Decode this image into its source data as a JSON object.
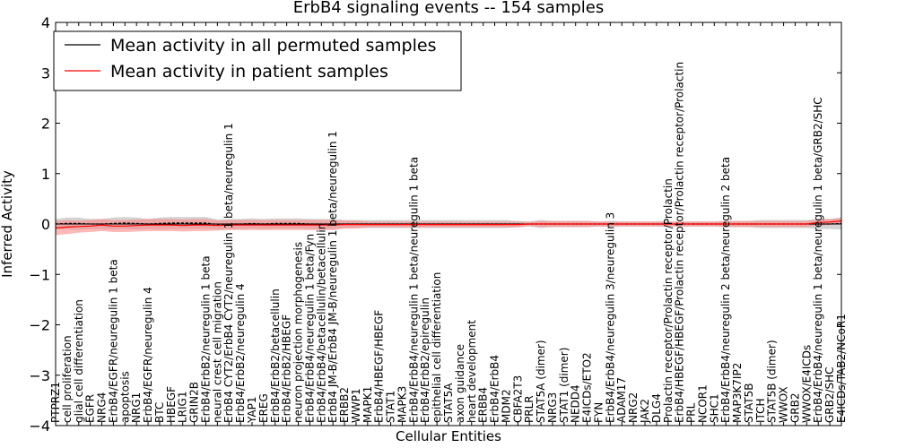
{
  "chart_data": {
    "type": "line",
    "title": "ErbB4 signaling events -- 154 samples",
    "xlabel": "Cellular Entities",
    "ylabel": "Inferred Activity",
    "ylim": [
      -4,
      4
    ],
    "yticks": [
      4,
      3,
      2,
      1,
      0,
      -1,
      -2,
      -3,
      -4
    ],
    "yticklabels": [
      "4",
      "3",
      "2",
      "1",
      "0",
      "−1",
      "−2",
      "−3",
      "−4"
    ],
    "legend": {
      "position": "top-left",
      "entries": [
        {
          "label": "Mean activity in all permuted samples",
          "color": "#000000"
        },
        {
          "label": "Mean activity in patient samples",
          "color": "#ff0000"
        }
      ]
    },
    "colors": {
      "permuted": "#000000",
      "patient": "#ff0000",
      "permuted_band": "#b0b0b0",
      "patient_band": "#ff8080"
    },
    "categories": [
      "PTPRZ1",
      "cell proliferation",
      "glial cell differentiation",
      "EGFR",
      "NRG4",
      "ErbB4/EGFR/neuregulin 1 beta",
      "apoptosis",
      "NRG1",
      "ErbB4/EGFR/neuregulin 4",
      "BTC",
      "HBEGF",
      "LRIG1",
      "GRIN2B",
      "ErbB4/ErbB2/neuregulin 1 beta",
      "neural crest cell migration",
      "ErbB4 CYT2/ErbB4 CYT2/neuregulin 1 beta/neuregulin 1",
      "ErbB4/ErbB2/neuregulin 4",
      "YAP1",
      "EREG",
      "ErbB4/ErbB2/betacellulin",
      "ErbB4/ErbB2/HBEGF",
      "neuron projection morphogenesis",
      "ErbB4/ErbB4/neuregulin 1 beta/Fyn",
      "ErbB4/ErbB4/betacellulin/betacellulin",
      "ErbB4 JM-B/ErbB4 JM-B/neuregulin 1 beta/neuregulin 1",
      "ERBB2",
      "WWP1",
      "MAPK1",
      "ErbB4/HBEGF/HBEGF",
      "STAT1",
      "MAPK3",
      "ErbB4/ErbB4/neuregulin 1 beta/neuregulin 1 beta",
      "ErbB4/ErbB2/epiregulin",
      "epithelial cell differentiation",
      "STAT5A",
      "axon guidance",
      "heart development",
      "ERBB4",
      "ErbB4/ErbB4",
      "MDM2",
      "CBFA2T3",
      "PRLR",
      "STAT5A (dimer)",
      "NRG3",
      "STAT1 (dimer)",
      "NEDD4",
      "E4ICDs/ETO2",
      "FYN",
      "ErbB4/ErbB4/neuregulin 3/neuregulin 3",
      "ADAM17",
      "NRG2",
      "JAK2",
      "DLG4",
      "Prolactin receptor/Prolactin receptor/Prolactin",
      "ErbB4/HBEGF/HBEGF/Prolactin receptor/Prolactin receptor/Prolactin",
      "PRL",
      "NCOR1",
      "SHC1",
      "ErbB4/ErbB4/neuregulin 2 beta/neuregulin 2 beta",
      "MAP3K7IP2",
      "STAT5B",
      "ITCH",
      "STAT5B (dimer)",
      "WWOX",
      "GRB2",
      "WWOX/E4ICDs",
      "ErbB4/ErbB4/neuregulin 1 beta/neuregulin 1 beta/GRB2/SHC",
      "GRB2/SHC",
      "E4ICDs/TAB2/NCoR1"
    ],
    "series": [
      {
        "name": "Mean activity in all permuted samples",
        "values": [
          0.0,
          0.01,
          0.01,
          0.0,
          0.0,
          0.01,
          0.02,
          0.01,
          0.0,
          0.01,
          0.02,
          0.02,
          0.02,
          0.02,
          -0.01,
          0.0,
          0.0,
          0.01,
          0.0,
          0.01,
          0.01,
          0.01,
          0.0,
          0.0,
          0.0,
          0.0,
          0.0,
          0.0,
          0.0,
          0.0,
          0.0,
          0.0,
          0.0,
          0.0,
          0.0,
          0.0,
          0.0,
          0.0,
          0.0,
          0.0,
          0.0,
          0.0,
          0.0,
          0.0,
          0.0,
          0.0,
          0.0,
          0.0,
          0.0,
          0.0,
          0.0,
          0.0,
          0.0,
          0.0,
          0.0,
          0.0,
          0.0,
          0.0,
          0.0,
          0.0,
          0.0,
          0.0,
          0.0,
          0.0,
          0.0,
          0.0,
          0.0,
          0.0,
          0.01
        ],
        "band": [
          0.1,
          0.12,
          0.12,
          0.1,
          0.1,
          0.12,
          0.12,
          0.12,
          0.1,
          0.12,
          0.12,
          0.12,
          0.12,
          0.12,
          0.1,
          0.1,
          0.1,
          0.1,
          0.1,
          0.1,
          0.1,
          0.1,
          0.1,
          0.1,
          0.1,
          0.08,
          0.08,
          0.08,
          0.08,
          0.08,
          0.08,
          0.08,
          0.08,
          0.08,
          0.08,
          0.08,
          0.08,
          0.08,
          0.08,
          0.08,
          0.06,
          0.05,
          0.08,
          0.06,
          0.06,
          0.06,
          0.06,
          0.05,
          0.06,
          0.05,
          0.05,
          0.05,
          0.05,
          0.05,
          0.05,
          0.05,
          0.05,
          0.05,
          0.06,
          0.06,
          0.06,
          0.08,
          0.08,
          0.08,
          0.08,
          0.08,
          0.1,
          0.1,
          0.12
        ]
      },
      {
        "name": "Mean activity in patient samples",
        "values": [
          -0.08,
          -0.06,
          -0.05,
          -0.04,
          -0.02,
          -0.04,
          -0.04,
          -0.03,
          -0.02,
          -0.02,
          -0.02,
          -0.03,
          -0.02,
          -0.02,
          -0.03,
          -0.02,
          -0.02,
          -0.02,
          -0.02,
          -0.02,
          -0.02,
          -0.02,
          -0.02,
          -0.02,
          -0.02,
          -0.01,
          -0.01,
          -0.01,
          -0.01,
          -0.01,
          -0.01,
          -0.01,
          -0.01,
          -0.01,
          -0.01,
          -0.01,
          -0.01,
          -0.01,
          -0.01,
          -0.01,
          -0.01,
          0.0,
          0.0,
          0.0,
          0.0,
          0.0,
          0.0,
          0.0,
          0.0,
          0.0,
          0.0,
          0.0,
          0.0,
          0.0,
          0.0,
          0.0,
          0.0,
          0.0,
          0.0,
          0.0,
          0.0,
          0.0,
          0.0,
          0.0,
          0.0,
          0.0,
          0.03,
          0.04,
          0.06
        ],
        "band": [
          0.14,
          0.14,
          0.12,
          0.12,
          0.12,
          0.12,
          0.12,
          0.12,
          0.12,
          0.12,
          0.12,
          0.12,
          0.12,
          0.12,
          0.1,
          0.1,
          0.1,
          0.1,
          0.1,
          0.1,
          0.1,
          0.1,
          0.1,
          0.1,
          0.1,
          0.08,
          0.08,
          0.06,
          0.06,
          0.06,
          0.06,
          0.06,
          0.06,
          0.06,
          0.06,
          0.06,
          0.06,
          0.06,
          0.06,
          0.06,
          0.06,
          0.04,
          0.06,
          0.06,
          0.06,
          0.06,
          0.06,
          0.05,
          0.05,
          0.05,
          0.05,
          0.05,
          0.05,
          0.05,
          0.05,
          0.05,
          0.05,
          0.05,
          0.06,
          0.06,
          0.06,
          0.06,
          0.06,
          0.06,
          0.06,
          0.06,
          0.06,
          0.06,
          0.06
        ]
      }
    ]
  }
}
